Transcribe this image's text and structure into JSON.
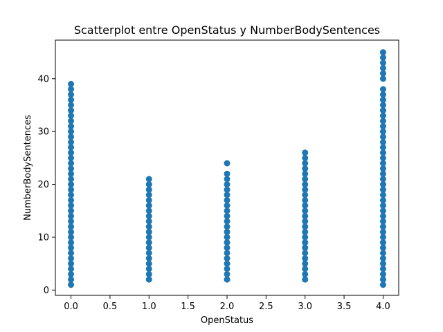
{
  "chart_data": {
    "type": "scatter",
    "title": "Scatterplot entre OpenStatus y NumberBodySentences",
    "xlabel": "OpenStatus",
    "ylabel": "NumberBodySentences",
    "xlim": [
      -0.2,
      4.2
    ],
    "ylim": [
      -1,
      47.3
    ],
    "x_ticks": [
      0.0,
      0.5,
      1.0,
      1.5,
      2.0,
      2.5,
      3.0,
      3.5,
      4.0
    ],
    "x_tick_labels": [
      "0.0",
      "0.5",
      "1.0",
      "1.5",
      "2.0",
      "2.5",
      "3.0",
      "3.5",
      "4.0"
    ],
    "y_ticks": [
      0,
      10,
      20,
      30,
      40
    ],
    "y_tick_labels": [
      "0",
      "10",
      "20",
      "30",
      "40"
    ],
    "grid": false,
    "marker_color": "#1f77b4",
    "series": [
      {
        "groups": [
          {
            "x": 0,
            "y": [
              1,
              2,
              3,
              4,
              5,
              6,
              7,
              8,
              9,
              10,
              11,
              12,
              13,
              14,
              15,
              16,
              17,
              18,
              19,
              20,
              21,
              22,
              23,
              24,
              25,
              26,
              27,
              28,
              29,
              30,
              31,
              32,
              33,
              34,
              35,
              36,
              37,
              38,
              39
            ]
          },
          {
            "x": 1,
            "y": [
              2,
              3,
              4,
              5,
              6,
              7,
              8,
              9,
              10,
              11,
              12,
              13,
              14,
              15,
              16,
              17,
              18,
              19,
              20,
              21
            ]
          },
          {
            "x": 2,
            "y": [
              2,
              3,
              4,
              5,
              6,
              7,
              8,
              9,
              10,
              11,
              12,
              13,
              14,
              15,
              16,
              17,
              18,
              19,
              20,
              21,
              22,
              24
            ]
          },
          {
            "x": 3,
            "y": [
              2,
              3,
              4,
              5,
              6,
              7,
              8,
              9,
              10,
              11,
              12,
              13,
              14,
              15,
              16,
              17,
              18,
              19,
              20,
              21,
              22,
              23,
              24,
              25,
              26
            ]
          },
          {
            "x": 4,
            "y": [
              1,
              2,
              3,
              4,
              5,
              6,
              7,
              8,
              9,
              10,
              11,
              12,
              13,
              14,
              15,
              16,
              17,
              18,
              19,
              20,
              21,
              22,
              23,
              24,
              25,
              26,
              27,
              28,
              29,
              30,
              31,
              32,
              33,
              34,
              35,
              36,
              37,
              38,
              40,
              41,
              42,
              43,
              44,
              45
            ]
          }
        ]
      }
    ]
  }
}
